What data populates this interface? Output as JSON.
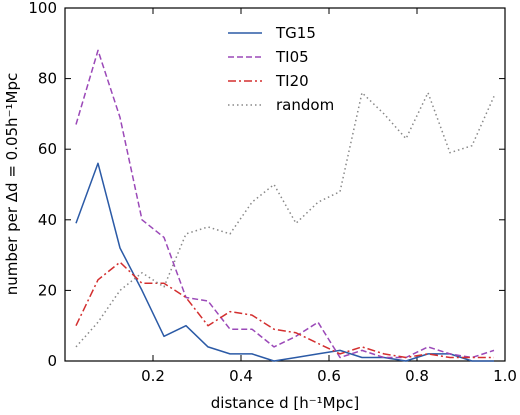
{
  "chart_data": {
    "type": "line",
    "xlabel": "distance d [h⁻¹Mpc]",
    "ylabel": "number per Δd = 0.05h⁻¹Mpc",
    "xlim": [
      0.0,
      1.0
    ],
    "ylim": [
      0,
      100
    ],
    "xticks": [
      0.2,
      0.4,
      0.6,
      0.8,
      1.0
    ],
    "xtick_labels": [
      "0.2",
      "0.4",
      "0.6",
      "0.8",
      "1.0"
    ],
    "yticks": [
      0,
      20,
      40,
      60,
      80,
      100
    ],
    "ytick_labels": [
      "0",
      "20",
      "40",
      "60",
      "80",
      "100"
    ],
    "grid": false,
    "legend_position": "top-center",
    "x": [
      0.025,
      0.075,
      0.125,
      0.175,
      0.225,
      0.275,
      0.325,
      0.375,
      0.425,
      0.475,
      0.525,
      0.575,
      0.625,
      0.675,
      0.725,
      0.775,
      0.825,
      0.875,
      0.925,
      0.975
    ],
    "series": [
      {
        "name": "TG15",
        "color": "#2b5aa6",
        "dash": "solid",
        "values": [
          39,
          56,
          32,
          20,
          7,
          10,
          4,
          2,
          2,
          0,
          1,
          2,
          3,
          1,
          1,
          0,
          2,
          2,
          0,
          0
        ]
      },
      {
        "name": "TI05",
        "color": "#9b49b8",
        "dash": "dashed",
        "values": [
          67,
          88,
          69,
          40,
          35,
          18,
          17,
          9,
          9,
          4,
          7,
          11,
          1,
          3,
          1,
          1,
          4,
          2,
          1,
          3
        ]
      },
      {
        "name": "TI20",
        "color": "#d32f2f",
        "dash": "dashdot",
        "values": [
          10,
          23,
          28,
          22,
          22,
          18,
          10,
          14,
          13,
          9,
          8,
          5,
          2,
          4,
          2,
          1,
          2,
          1,
          1,
          1
        ]
      },
      {
        "name": "random",
        "color": "#888888",
        "dash": "dotted",
        "values": [
          4,
          11,
          20,
          25,
          21,
          36,
          38,
          36,
          45,
          50,
          39,
          45,
          48,
          76,
          70,
          63,
          76,
          59,
          61,
          75
        ]
      }
    ]
  }
}
